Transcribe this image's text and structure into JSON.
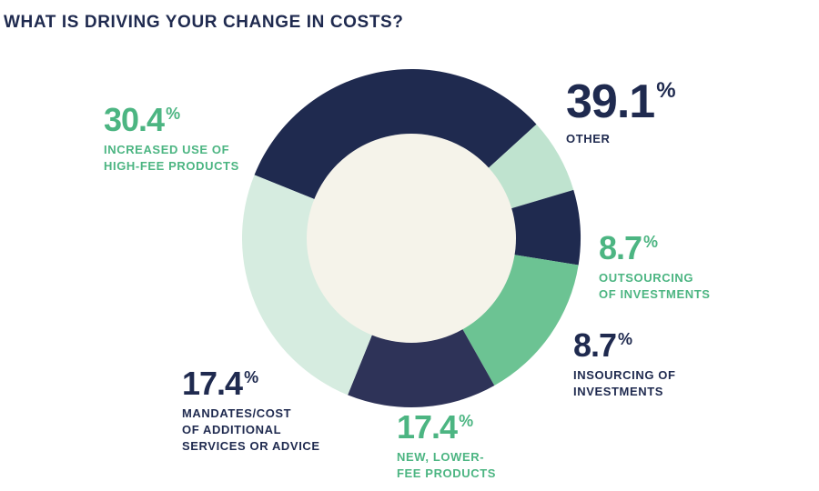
{
  "title": "WHAT IS DRIVING YOUR CHANGE IN COSTS?",
  "chart_data": {
    "type": "pie",
    "donut": true,
    "unit": "%",
    "slices": [
      {
        "value": 39.1,
        "label": "OTHER",
        "color": "#1f2a4f"
      },
      {
        "value": 8.7,
        "label": "OUTSOURCING\nOF INVESTMENTS",
        "color": "#bfe3cf"
      },
      {
        "value": 8.7,
        "label": "INSOURCING OF\nINVESTMENTS",
        "color": "#1f2a4f"
      },
      {
        "value": 17.4,
        "label": "NEW, LOWER-\nFEE PRODUCTS",
        "color": "#6cc393"
      },
      {
        "value": 17.4,
        "label": "MANDATES/COST\nOF ADDITIONAL\nSERVICES OR ADVICE",
        "color": "#2e3358"
      },
      {
        "value": 30.4,
        "label": "INCREASED USE OF\nHIGH-FEE PRODUCTS",
        "color": "#d6ece0"
      }
    ],
    "hole_color": "#f5f3ea"
  },
  "labels": [
    {
      "pct": "39.1",
      "sup": "%",
      "cap": "OTHER"
    },
    {
      "pct": "8.7",
      "sup": "%",
      "cap": "OUTSOURCING\nOF INVESTMENTS"
    },
    {
      "pct": "8.7",
      "sup": "%",
      "cap": "INSOURCING OF\nINVESTMENTS"
    },
    {
      "pct": "17.4",
      "sup": "%",
      "cap": "NEW, LOWER-\nFEE PRODUCTS"
    },
    {
      "pct": "17.4",
      "sup": "%",
      "cap": "MANDATES/COST\nOF ADDITIONAL\nSERVICES OR ADVICE"
    },
    {
      "pct": "30.4",
      "sup": "%",
      "cap": "INCREASED USE OF\nHIGH-FEE PRODUCTS"
    }
  ]
}
